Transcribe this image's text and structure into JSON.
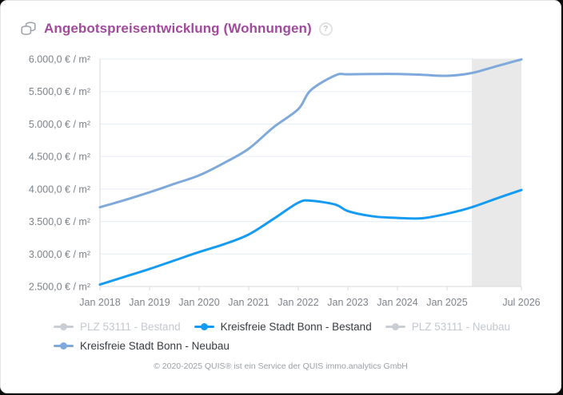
{
  "header": {
    "title": "Angebotspreisentwicklung (Wohnungen)",
    "help_icon_glyph": "?"
  },
  "chart_data": {
    "type": "line",
    "title": "Angebotspreisentwicklung (Wohnungen)",
    "xlim": [
      2018.0,
      2026.5
    ],
    "ylim": [
      2500,
      6000
    ],
    "grid": true,
    "legend_position": "bottom",
    "x": [
      2018.0,
      2018.5,
      2019.0,
      2019.5,
      2020.0,
      2020.5,
      2021.0,
      2021.5,
      2022.0,
      2022.25,
      2022.75,
      2023.0,
      2023.5,
      2024.0,
      2024.5,
      2025.0,
      2025.5,
      2026.0,
      2026.5
    ],
    "series": [
      {
        "name": "PLZ 53111 - Bestand",
        "color": "#c9ced4",
        "visible": false,
        "values": []
      },
      {
        "name": "Kreisfreie Stadt Bonn - Bestand",
        "color": "#159bf2",
        "visible": true,
        "values": [
          2530,
          2650,
          2770,
          2900,
          3030,
          3150,
          3300,
          3540,
          3790,
          3820,
          3760,
          3660,
          3580,
          3555,
          3550,
          3620,
          3720,
          3855,
          3985
        ]
      },
      {
        "name": "PLZ 53111 - Neubau",
        "color": "#c9ced4",
        "visible": false,
        "values": []
      },
      {
        "name": "Kreisfreie Stadt Bonn - Neubau",
        "color": "#7ea9da",
        "visible": true,
        "values": [
          3720,
          3830,
          3950,
          4080,
          4210,
          4400,
          4620,
          4950,
          5230,
          5520,
          5750,
          5765,
          5770,
          5770,
          5758,
          5742,
          5785,
          5890,
          5995
        ]
      }
    ],
    "y_ticks": [
      {
        "value": 2500,
        "label": "2.500,0 € / m²"
      },
      {
        "value": 3000,
        "label": "3.000,0 € / m²"
      },
      {
        "value": 3500,
        "label": "3.500,0 € / m²"
      },
      {
        "value": 4000,
        "label": "4.000,0 € / m²"
      },
      {
        "value": 4500,
        "label": "4.500,0 € / m²"
      },
      {
        "value": 5000,
        "label": "5.000,0 € / m²"
      },
      {
        "value": 5500,
        "label": "5.500,0 € / m²"
      },
      {
        "value": 6000,
        "label": "6.000,0 € / m²"
      }
    ],
    "x_ticks": [
      {
        "pos": 2018.0,
        "label": "Jan 2018"
      },
      {
        "pos": 2019.0,
        "label": "Jan 2019"
      },
      {
        "pos": 2020.0,
        "label": "Jan 2020"
      },
      {
        "pos": 2021.0,
        "label": "Jan 2021"
      },
      {
        "pos": 2022.0,
        "label": "Jan 2022"
      },
      {
        "pos": 2023.0,
        "label": "Jan 2023"
      },
      {
        "pos": 2024.0,
        "label": "Jan 2024"
      },
      {
        "pos": 2025.0,
        "label": "Jan 2025"
      },
      {
        "pos": 2026.5,
        "label": "Jul 2026"
      }
    ],
    "forecast_band": {
      "from": 2025.5,
      "to": 2026.5,
      "color": "#e9e9e9"
    },
    "colors": {
      "grid": "#e6edf5",
      "axis": "#d5d8db",
      "tick_text": "#7d8389"
    }
  },
  "legend": {
    "items": [
      {
        "label": "PLZ 53111 - Bestand",
        "color": "#c9ced4",
        "enabled": false
      },
      {
        "label": "Kreisfreie Stadt Bonn - Bestand",
        "color": "#159bf2",
        "enabled": true
      },
      {
        "label": "PLZ 53111 - Neubau",
        "color": "#c9ced4",
        "enabled": false
      },
      {
        "label": "Kreisfreie Stadt Bonn - Neubau",
        "color": "#7ea9da",
        "enabled": true
      }
    ]
  },
  "footer": {
    "copyright": "© 2020-2025 QUIS® ist ein Service der QUIS immo.analytics GmbH"
  }
}
